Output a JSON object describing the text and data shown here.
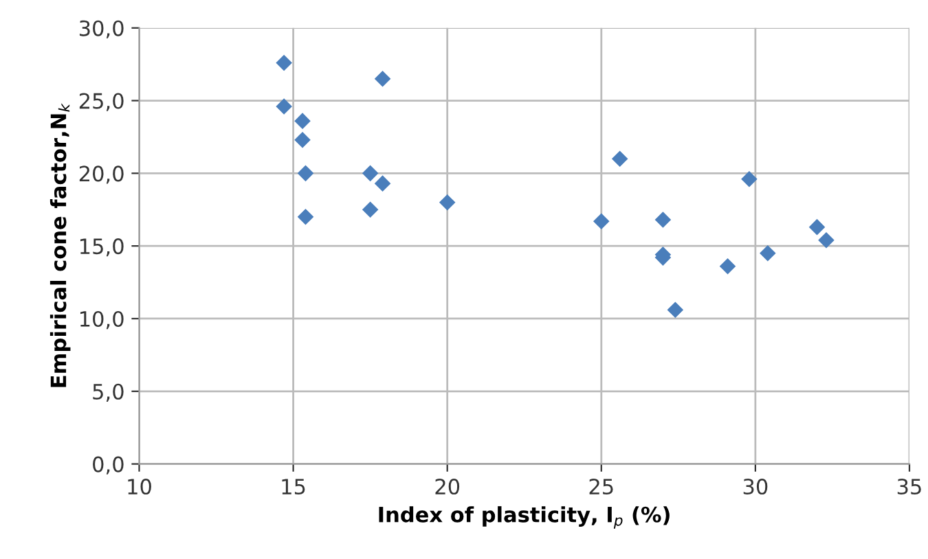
{
  "chart_data": {
    "type": "scatter",
    "xlabel": "Index of plasticity, I$_{p}$ (%)",
    "ylabel": "Empirical cone factor,N$_{k}$",
    "x": [
      14.7,
      17.9,
      14.7,
      15.3,
      15.3,
      15.4,
      17.5,
      17.9,
      20.0,
      17.5,
      15.4,
      25.6,
      29.8,
      25.0,
      27.0,
      27.0,
      27.0,
      27.4,
      29.1,
      30.4,
      32.0,
      32.3
    ],
    "series": [
      {
        "color": "#4a7ebb",
        "values": [
          27.6,
          26.5,
          24.6,
          23.6,
          22.3,
          20.0,
          20.0,
          19.3,
          18.0,
          17.5,
          17.0,
          21.0,
          19.6,
          16.7,
          16.8,
          14.4,
          14.2,
          10.6,
          13.6,
          14.5,
          16.3,
          15.4
        ]
      }
    ],
    "xlim": [
      10,
      35
    ],
    "xticks": [
      10,
      15,
      20,
      25,
      30,
      35
    ],
    "ylim": [
      0,
      30
    ],
    "yticks": [
      {
        "value": 0,
        "label": "0,0"
      },
      {
        "value": 5,
        "label": "5,0"
      },
      {
        "value": 10,
        "label": "10,0"
      },
      {
        "value": 15,
        "label": "15,0"
      },
      {
        "value": 20,
        "label": "20,0"
      },
      {
        "value": 25,
        "label": "25,0"
      },
      {
        "value": 30,
        "label": "30,0"
      }
    ],
    "grid": true,
    "marker": "diamond",
    "legend": false
  }
}
